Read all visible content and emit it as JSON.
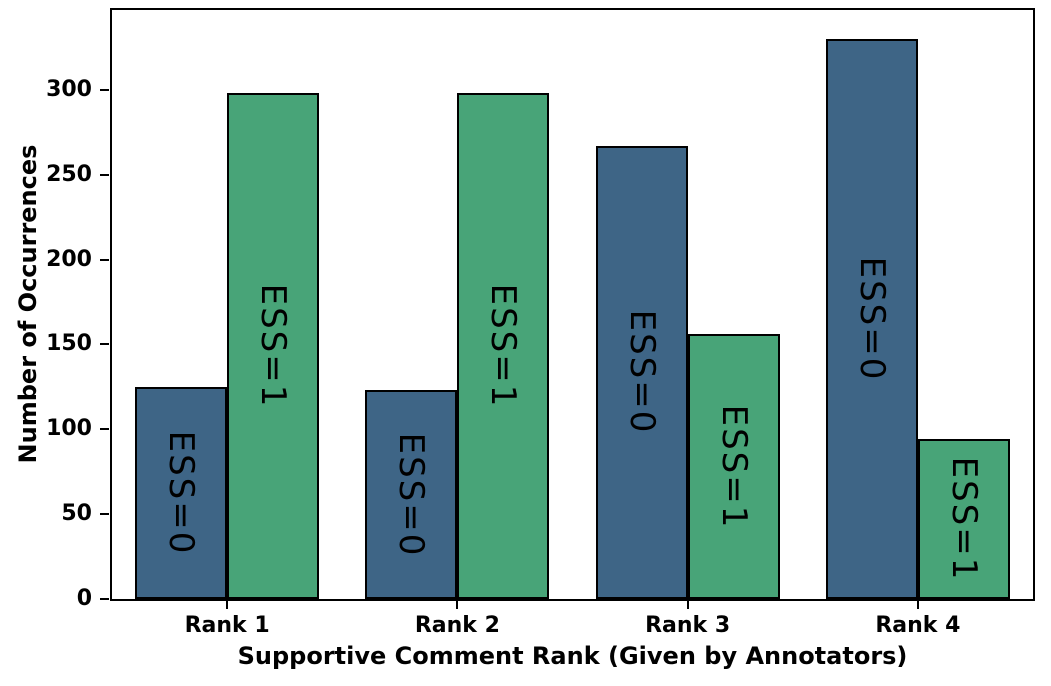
{
  "chart_data": {
    "type": "bar",
    "categories": [
      "Rank 1",
      "Rank 2",
      "Rank 3",
      "Rank 4"
    ],
    "series": [
      {
        "name": "ESS=0",
        "bar_label": "ESS=0",
        "color": "#3E6586",
        "values": [
          125,
          123,
          267,
          330
        ]
      },
      {
        "name": "ESS=1",
        "bar_label": "ESS=1",
        "color": "#48A478",
        "values": [
          298,
          298,
          156,
          94
        ]
      }
    ],
    "xlabel": "Supportive Comment Rank (Given by Annotators)",
    "ylabel": "Number of Occurrences",
    "yticks": [
      0,
      50,
      100,
      150,
      200,
      250,
      300
    ],
    "ylim": [
      0,
      347
    ],
    "grid": false,
    "legend": "none",
    "bar_edge_color": "#000000",
    "label_rotation_deg": 90
  }
}
